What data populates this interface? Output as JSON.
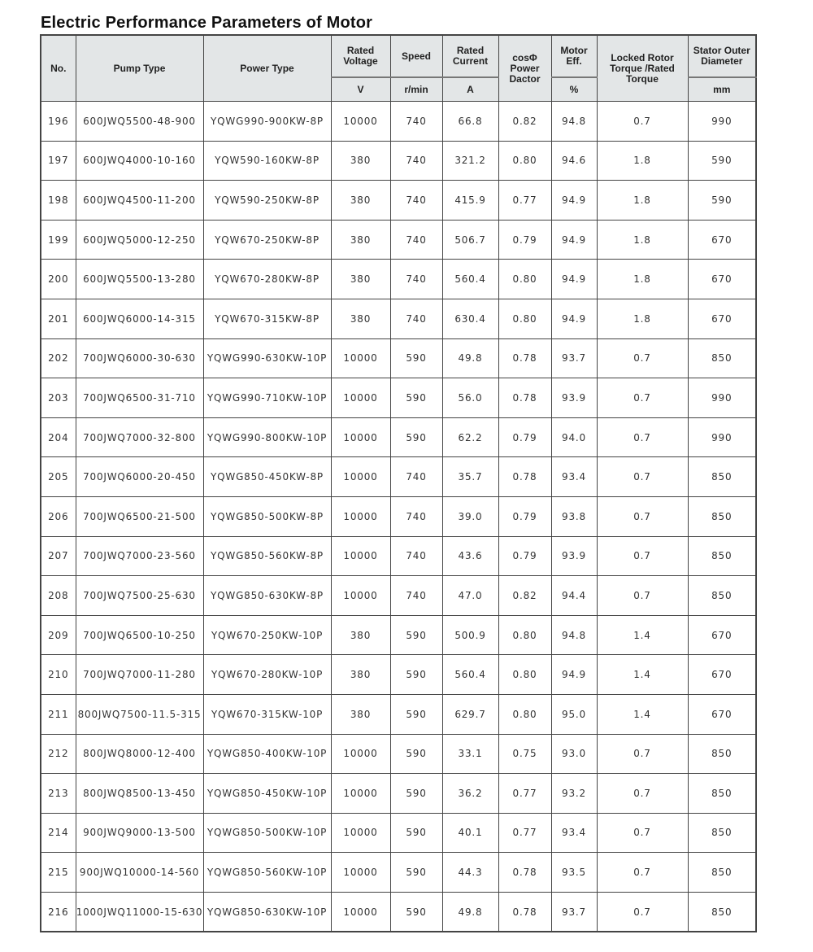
{
  "title": "Electric Performance Parameters of Motor",
  "headers": {
    "no": "No.",
    "pump_type": "Pump Type",
    "power_type": "Power Type",
    "rated_voltage": "Rated Voltage",
    "speed": "Speed",
    "rated_current": "Rated Current",
    "power_factor": "cosΦ Power Dactor",
    "motor_eff": "Motor Eff.",
    "torque_ratio": "Locked Rotor Torque /Rated Torque",
    "stator_diameter": "Stator Outer Diameter"
  },
  "units": {
    "rated_voltage": "V",
    "speed": "r/min",
    "rated_current": "A",
    "motor_eff": "%",
    "stator_diameter": "mm"
  },
  "rows": [
    [
      "196",
      "600JWQ5500-48-900",
      "YQWG990-900KW-8P",
      "10000",
      "740",
      "66.8",
      "0.82",
      "94.8",
      "0.7",
      "990"
    ],
    [
      "197",
      "600JWQ4000-10-160",
      "YQW590-160KW-8P",
      "380",
      "740",
      "321.2",
      "0.80",
      "94.6",
      "1.8",
      "590"
    ],
    [
      "198",
      "600JWQ4500-11-200",
      "YQW590-250KW-8P",
      "380",
      "740",
      "415.9",
      "0.77",
      "94.9",
      "1.8",
      "590"
    ],
    [
      "199",
      "600JWQ5000-12-250",
      "YQW670-250KW-8P",
      "380",
      "740",
      "506.7",
      "0.79",
      "94.9",
      "1.8",
      "670"
    ],
    [
      "200",
      "600JWQ5500-13-280",
      "YQW670-280KW-8P",
      "380",
      "740",
      "560.4",
      "0.80",
      "94.9",
      "1.8",
      "670"
    ],
    [
      "201",
      "600JWQ6000-14-315",
      "YQW670-315KW-8P",
      "380",
      "740",
      "630.4",
      "0.80",
      "94.9",
      "1.8",
      "670"
    ],
    [
      "202",
      "700JWQ6000-30-630",
      "YQWG990-630KW-10P",
      "10000",
      "590",
      "49.8",
      "0.78",
      "93.7",
      "0.7",
      "850"
    ],
    [
      "203",
      "700JWQ6500-31-710",
      "YQWG990-710KW-10P",
      "10000",
      "590",
      "56.0",
      "0.78",
      "93.9",
      "0.7",
      "990"
    ],
    [
      "204",
      "700JWQ7000-32-800",
      "YQWG990-800KW-10P",
      "10000",
      "590",
      "62.2",
      "0.79",
      "94.0",
      "0.7",
      "990"
    ],
    [
      "205",
      "700JWQ6000-20-450",
      "YQWG850-450KW-8P",
      "10000",
      "740",
      "35.7",
      "0.78",
      "93.4",
      "0.7",
      "850"
    ],
    [
      "206",
      "700JWQ6500-21-500",
      "YQWG850-500KW-8P",
      "10000",
      "740",
      "39.0",
      "0.79",
      "93.8",
      "0.7",
      "850"
    ],
    [
      "207",
      "700JWQ7000-23-560",
      "YQWG850-560KW-8P",
      "10000",
      "740",
      "43.6",
      "0.79",
      "93.9",
      "0.7",
      "850"
    ],
    [
      "208",
      "700JWQ7500-25-630",
      "YQWG850-630KW-8P",
      "10000",
      "740",
      "47.0",
      "0.82",
      "94.4",
      "0.7",
      "850"
    ],
    [
      "209",
      "700JWQ6500-10-250",
      "YQW670-250KW-10P",
      "380",
      "590",
      "500.9",
      "0.80",
      "94.8",
      "1.4",
      "670"
    ],
    [
      "210",
      "700JWQ7000-11-280",
      "YQW670-280KW-10P",
      "380",
      "590",
      "560.4",
      "0.80",
      "94.9",
      "1.4",
      "670"
    ],
    [
      "211",
      "800JWQ7500-11.5-315",
      "YQW670-315KW-10P",
      "380",
      "590",
      "629.7",
      "0.80",
      "95.0",
      "1.4",
      "670"
    ],
    [
      "212",
      "800JWQ8000-12-400",
      "YQWG850-400KW-10P",
      "10000",
      "590",
      "33.1",
      "0.75",
      "93.0",
      "0.7",
      "850"
    ],
    [
      "213",
      "800JWQ8500-13-450",
      "YQWG850-450KW-10P",
      "10000",
      "590",
      "36.2",
      "0.77",
      "93.2",
      "0.7",
      "850"
    ],
    [
      "214",
      "900JWQ9000-13-500",
      "YQWG850-500KW-10P",
      "10000",
      "590",
      "40.1",
      "0.77",
      "93.4",
      "0.7",
      "850"
    ],
    [
      "215",
      "900JWQ10000-14-560",
      "YQWG850-560KW-10P",
      "10000",
      "590",
      "44.3",
      "0.78",
      "93.5",
      "0.7",
      "850"
    ],
    [
      "216",
      "1000JWQ11000-15-630",
      "YQWG850-630KW-10P",
      "10000",
      "590",
      "49.8",
      "0.78",
      "93.7",
      "0.7",
      "850"
    ]
  ]
}
